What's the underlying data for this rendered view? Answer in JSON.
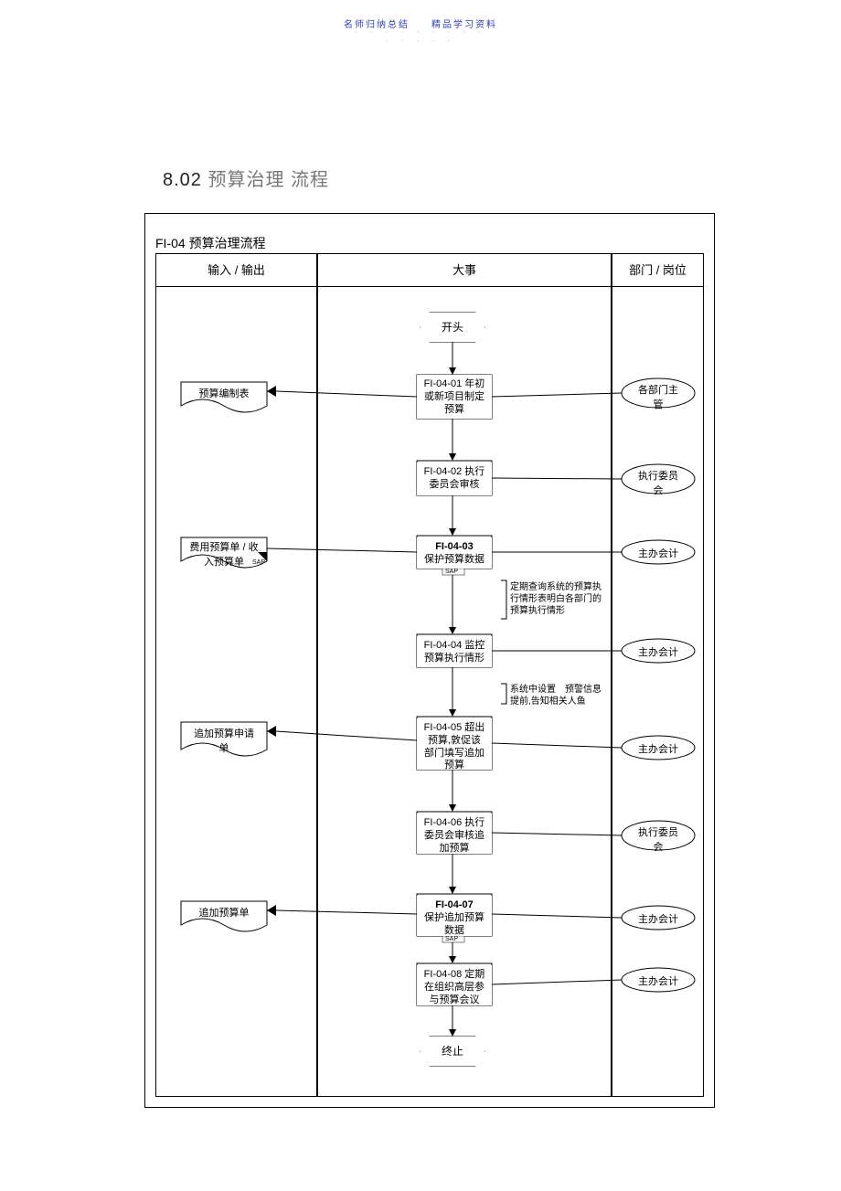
{
  "header": {
    "line": "名师归纳总结　　精品学习资料",
    "dots": "- - - - - - - - -",
    "dots2": "- - - - -"
  },
  "section": {
    "number": "8.02",
    "text": "预算治理 流程"
  },
  "frameTitle": "FI-04 预算治理流程",
  "laneHeaders": {
    "col1": "输入 / 输出",
    "col2": "大事",
    "col3": "部门 / 岗位"
  },
  "start": "开头",
  "end": "终止",
  "steps": {
    "s1": "FI-04-01 年初\n或新项目制定\n预算",
    "s2": "FI-04-02 执行\n委员会审核",
    "s3_title": "FI-04-03",
    "s3_sub": "保护预算数据",
    "s4": "FI-04-04 监控\n预算执行情形",
    "s5": "FI-04-05 超出\n预算,敦促该\n部门填写追加\n预算",
    "s6": "FI-04-06 执行\n委员会审核追\n加预算",
    "s7_title": "FI-04-07",
    "s7_sub": "保护追加预算\n数据",
    "s8": "FI-04-08 定期\n在组织高层参\n与预算会议"
  },
  "docs": {
    "d1": "预算编制表",
    "d2": "费用预算单 / 收\n入预算单",
    "d3": "追加预算申请\n单",
    "d4": "追加预算单"
  },
  "roles": {
    "r1": "各部门主\n管",
    "r2": "执行委员\n会",
    "r3": "主办会计",
    "r4": "主办会计",
    "r5": "主办会计",
    "r6": "执行委员\n会",
    "r7": "主办会计",
    "r8": "主办会计"
  },
  "notes": {
    "n1": "定期查询系统的预算执\n行情形表明白各部门的\n预算执行情形",
    "n2": "系统中设置　预警信息\n提前,告知相关人鱼"
  },
  "sap": "SAP",
  "style": {
    "lineColor": "#000000",
    "frameColor": "#000000",
    "bg": "#ffffff"
  }
}
